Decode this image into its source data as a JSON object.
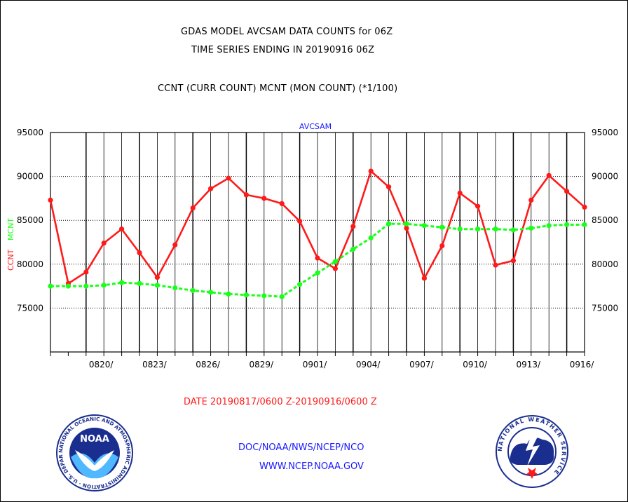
{
  "header": {
    "title_line1": "GDAS MODEL AVCSAM DATA COUNTS for 06Z",
    "title_line2": "TIME SERIES ENDING IN 20190916 06Z",
    "subtitle": "CCNT (CURR COUNT) MCNT (MON COUNT) (*1/100)"
  },
  "footer": {
    "date_range": "DATE 20190817/0600 Z-20190916/0600 Z",
    "org_line": "DOC/NOAA/NWS/NCEP/NCO",
    "url": "WWW.NCEP.NOAA.GOV"
  },
  "logos": {
    "noaa_text": "NOAA",
    "noaa_ring": "NATIONAL OCEANIC AND ATMOSPHERIC ADMINISTRATION · U.S. DEPARTMENT OF COMMERCE ·",
    "nws_ring": "NATIONAL WEATHER SERVICE"
  },
  "colors": {
    "ccnt": "#ff1a1a",
    "mcnt": "#1aff1a",
    "axis_title": "#1a1aff",
    "grid": "#000000"
  },
  "chart_data": {
    "type": "line",
    "title": "AVCSAM",
    "ylabel_parts": [
      "CCNT",
      "MCNT"
    ],
    "ylim": [
      70000,
      95000
    ],
    "y_ticks": [
      "95000",
      "90000",
      "85000",
      "80000",
      "75000"
    ],
    "y_tick_values": [
      95000,
      90000,
      85000,
      80000,
      75000
    ],
    "x_tick_labels": [
      "0820/",
      "0823/",
      "0826/",
      "0829/",
      "0901/",
      "0904/",
      "0907/",
      "0910/",
      "0913/",
      "0916/"
    ],
    "x_tick_days": [
      3,
      6,
      9,
      12,
      15,
      18,
      21,
      24,
      27,
      30
    ],
    "x_days": [
      0,
      1,
      2,
      3,
      4,
      5,
      6,
      7,
      8,
      9,
      10,
      11,
      12,
      13,
      14,
      15,
      16,
      17,
      18,
      19,
      20,
      21,
      22,
      23,
      24,
      25,
      26,
      27,
      28,
      29,
      30
    ],
    "grid": true,
    "series": [
      {
        "name": "CCNT",
        "values": [
          87300,
          77800,
          79100,
          82400,
          84000,
          81300,
          78500,
          82200,
          86400,
          88600,
          89800,
          87900,
          87500,
          86900,
          84900,
          80700,
          79500,
          84300,
          90600,
          88800,
          84100,
          78400,
          82100,
          88100,
          86600,
          79900,
          80400,
          87300,
          90100,
          88300,
          86500
        ]
      },
      {
        "name": "MCNT",
        "values": [
          77500,
          77500,
          77500,
          77600,
          77900,
          77800,
          77600,
          77300,
          77000,
          76800,
          76600,
          76500,
          76400,
          76300,
          77700,
          79000,
          80300,
          81700,
          83000,
          84600,
          84600,
          84400,
          84200,
          84000,
          84000,
          84000,
          83900,
          84100,
          84400,
          84500,
          84500
        ]
      }
    ]
  }
}
